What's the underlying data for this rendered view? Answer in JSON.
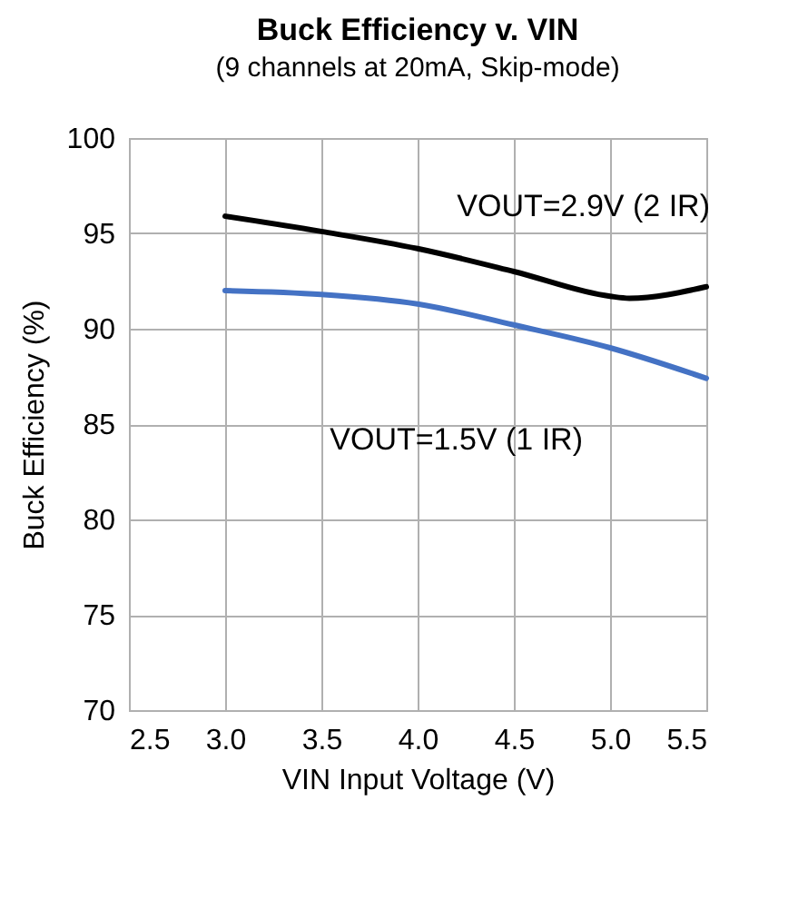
{
  "chart_data": {
    "type": "line",
    "title": "Buck Efficiency v. VIN",
    "subtitle": "(9 channels at 20mA, Skip-mode)",
    "xlabel": "VIN Input Voltage (V)",
    "ylabel": "Buck Efficiency (%)",
    "x": [
      3.0,
      3.5,
      4.0,
      4.5,
      5.0,
      5.1,
      5.5
    ],
    "series": [
      {
        "name": "VOUT=2.9V (2 IR)",
        "color": "#000000",
        "values": [
          95.9,
          95.1,
          94.2,
          93.0,
          91.7,
          91.6,
          92.2
        ]
      },
      {
        "name": "VOUT=1.5V (1 IR)",
        "color": "#4472c4",
        "values": [
          92.0,
          91.8,
          91.3,
          90.2,
          89.0,
          null,
          87.4
        ]
      }
    ],
    "xlim": [
      2.5,
      5.5
    ],
    "xticks": [
      {
        "value": 2.5,
        "label": "2.5"
      },
      {
        "value": 3.0,
        "label": "3.0"
      },
      {
        "value": 3.5,
        "label": "3.5"
      },
      {
        "value": 4.0,
        "label": "4.0"
      },
      {
        "value": 4.5,
        "label": "4.5"
      },
      {
        "value": 5.0,
        "label": "5.0"
      },
      {
        "value": 5.5,
        "label": "5.5"
      }
    ],
    "ylim": [
      70,
      100
    ],
    "yticks": [
      70,
      75,
      80,
      85,
      90,
      95,
      100
    ],
    "grid": true,
    "marker": "none",
    "line_style": "solid",
    "legend": false
  }
}
